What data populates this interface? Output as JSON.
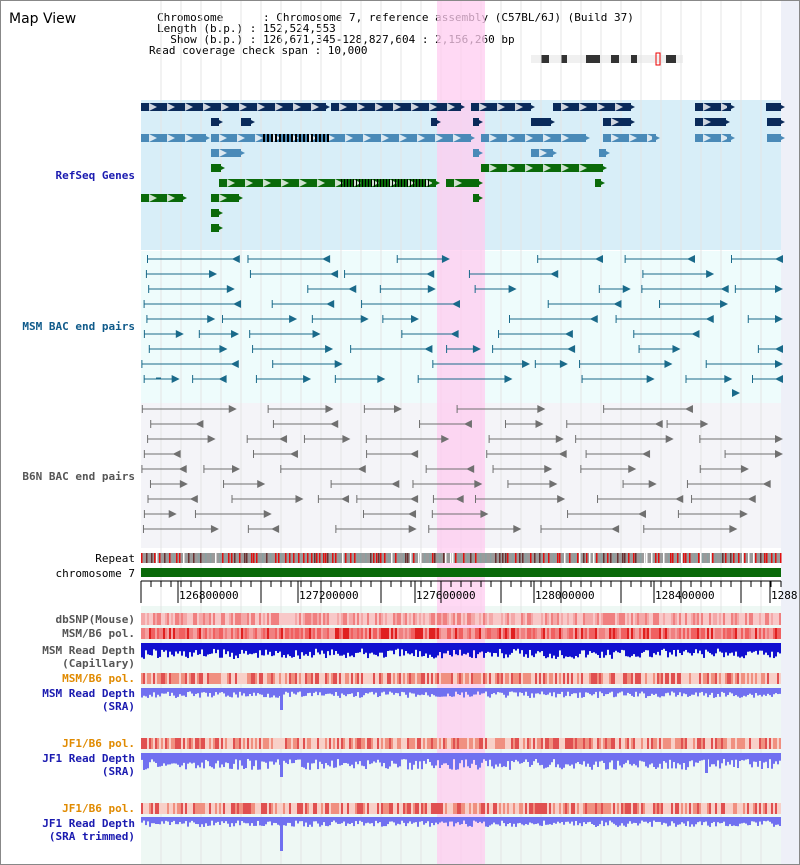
{
  "title": "Map View",
  "header": {
    "lines": [
      "Chromosome      : Chromosome 7, reference assembly (C57BL/6J) (Build 37)",
      "Length (b.p.) : 152,524,553",
      "  Show (b.p.) : 126,671,345-128,827,604 : 2,156,260 bp",
      "Read coverage check span : 10,000"
    ]
  },
  "tracks": {
    "refseq": "RefSeq Genes",
    "msm_bac": "MSM BAC end pairs",
    "b6n_bac": "B6N BAC end pairs",
    "repeat": "Repeat",
    "chromosome": "chromosome 7",
    "dbsnp": "dbSNP(Mouse)",
    "msm_b6_pol_1": "MSM/B6 pol.",
    "msm_depth_cap": "MSM Read Depth\n(Capillary)",
    "msm_b6_pol_2": "MSM/B6 pol.",
    "msm_depth_sra": "MSM Read Depth\n(SRA)",
    "jf1_b6_pol_1": "JF1/B6 pol.",
    "jf1_depth_sra": "JF1 Read Depth\n(SRA)",
    "jf1_b6_pol_2": "JF1/B6 pol.",
    "jf1_depth_trim": "JF1 Read Depth\n(SRA trimmed)"
  },
  "ruler": {
    "ticks": [
      "126800000",
      "127200000",
      "127600000",
      "128000000",
      "128400000",
      "1288"
    ]
  },
  "colors": {
    "refseq_bg": "#d8eef8",
    "bac_bg": "#eefcfc",
    "highlight": "#ffccf0",
    "gene_navy": "#0a2a5a",
    "gene_steel": "#4a8ab8",
    "gene_green": "#0a6a0a",
    "msm_line": "#1a6a8a",
    "b6n_line": "#707070",
    "chrom_green": "#0a6a0a",
    "depth_blue": "#1010d0",
    "depth_light": "#7070f0"
  }
}
